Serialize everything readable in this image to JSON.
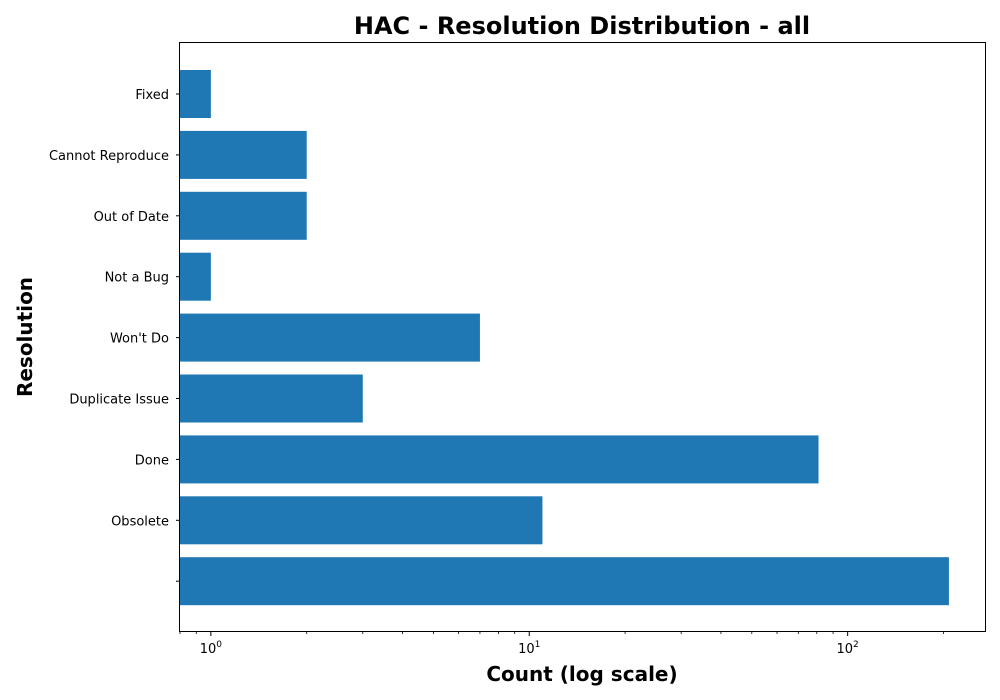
{
  "chart_data": {
    "type": "bar",
    "orientation": "horizontal",
    "title": "HAC - Resolution Distribution - all",
    "xlabel": "Count (log scale)",
    "ylabel": "Resolution",
    "x_scale": "log",
    "xlim": [
      0.8,
      270
    ],
    "x_ticks": [
      {
        "value": 1,
        "base": "10",
        "exp": "0"
      },
      {
        "value": 10,
        "base": "10",
        "exp": "1"
      },
      {
        "value": 100,
        "base": "10",
        "exp": "2"
      }
    ],
    "categories": [
      "Fixed",
      "Cannot Reproduce",
      "Out of Date",
      "Not a Bug",
      "Won't Do",
      "Duplicate Issue",
      "Done",
      "Obsolete",
      ""
    ],
    "values": [
      1,
      2,
      2,
      1,
      7,
      3,
      81,
      11,
      208
    ],
    "bar_color": "#1f77b4",
    "grid": false,
    "legend": "none"
  }
}
